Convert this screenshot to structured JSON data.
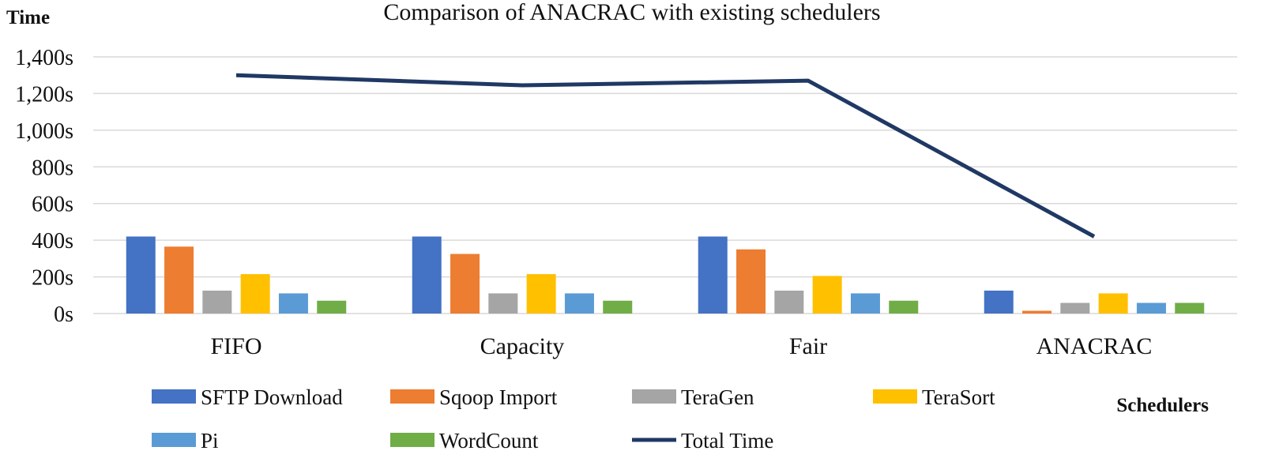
{
  "chart_data": {
    "type": "bar",
    "title": "Comparison of ANACRAC with existing schedulers",
    "ylabel": "Time",
    "xlabel": "Schedulers",
    "ylim": [
      0,
      1400
    ],
    "yticks": [
      0,
      200,
      400,
      600,
      800,
      1000,
      1200,
      1400
    ],
    "ytick_labels": [
      "0s",
      "200s",
      "400s",
      "600s",
      "800s",
      "1,000s",
      "1,200s",
      "1,400s"
    ],
    "grid": true,
    "legend_position": "bottom",
    "categories": [
      "FIFO",
      "Capacity",
      "Fair",
      "ANACRAC"
    ],
    "series": [
      {
        "name": "SFTP Download",
        "type": "bar",
        "color": "#4472C4",
        "values": [
          420,
          420,
          420,
          125
        ]
      },
      {
        "name": "Sqoop Import",
        "type": "bar",
        "color": "#ED7D31",
        "values": [
          365,
          325,
          350,
          15
        ]
      },
      {
        "name": "TeraGen",
        "type": "bar",
        "color": "#A5A5A5",
        "values": [
          125,
          110,
          125,
          58
        ]
      },
      {
        "name": "TeraSort",
        "type": "bar",
        "color": "#FFC000",
        "values": [
          215,
          215,
          205,
          110
        ]
      },
      {
        "name": "Pi",
        "type": "bar",
        "color": "#5B9BD5",
        "values": [
          110,
          110,
          110,
          58
        ]
      },
      {
        "name": "WordCount",
        "type": "bar",
        "color": "#70AD47",
        "values": [
          70,
          70,
          70,
          58
        ]
      },
      {
        "name": "Total Time",
        "type": "line",
        "color": "#203864",
        "values": [
          1300,
          1245,
          1270,
          420
        ]
      }
    ]
  }
}
